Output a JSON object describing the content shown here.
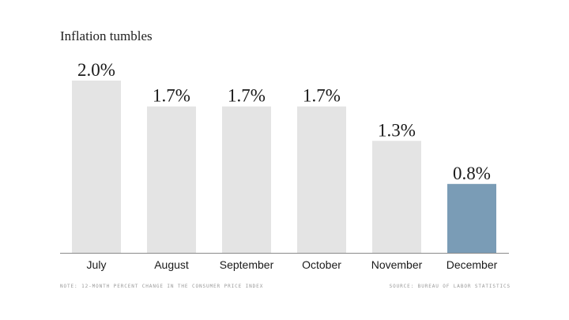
{
  "chart_data": {
    "type": "bar",
    "title": "Inflation tumbles",
    "categories": [
      "July",
      "August",
      "September",
      "October",
      "November",
      "December"
    ],
    "values": [
      2.0,
      1.7,
      1.7,
      1.7,
      1.3,
      0.8
    ],
    "value_labels": [
      "2.0%",
      "1.7%",
      "1.7%",
      "1.7%",
      "1.3%",
      "0.8%"
    ],
    "xlabel": "",
    "ylabel": "",
    "ylim": [
      0,
      2.0
    ],
    "grid": false,
    "bar_color": "#e4e4e4",
    "highlight_color": "#7a9cb6",
    "highlight_index": 5
  },
  "footer": {
    "note": "NOTE: 12-MONTH PERCENT CHANGE IN THE CONSUMER PRICE INDEX",
    "source": "SOURCE: BUREAU OF LABOR STATISTICS"
  }
}
